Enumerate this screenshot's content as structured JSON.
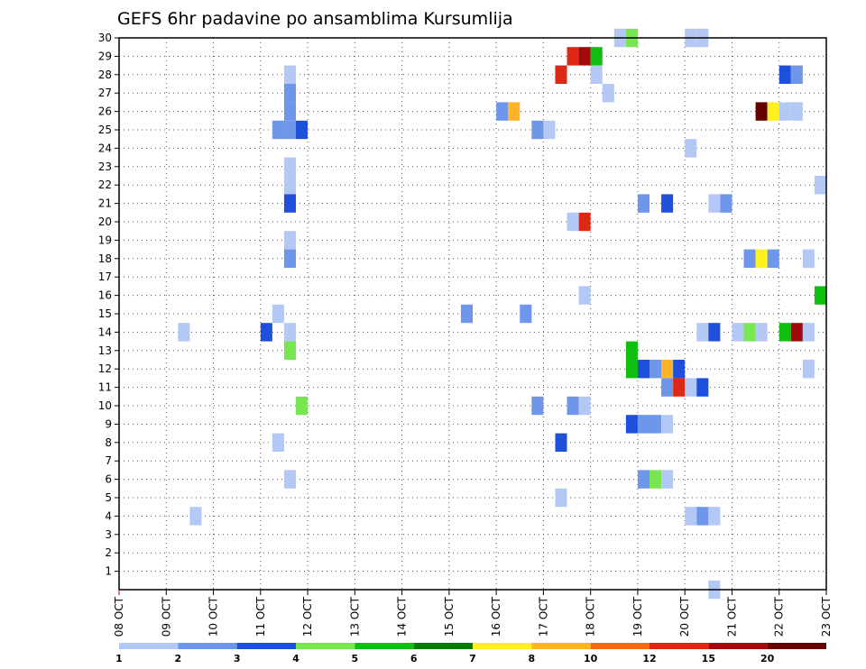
{
  "chart_data": {
    "type": "heatmap",
    "title": "GEFS 6hr padavine po ansamblima Kursumlija",
    "xlabel": "",
    "ylabel": "",
    "x_tick_labels": [
      "08 OCT",
      "09 OCT",
      "10 OCT",
      "11 OCT",
      "12 OCT",
      "13 OCT",
      "14 OCT",
      "15 OCT",
      "16 OCT",
      "17 OCT",
      "18 OCT",
      "19 OCT",
      "20 OCT",
      "21 OCT",
      "22 OCT",
      "23 OCT"
    ],
    "y_tick_labels": [
      "1",
      "2",
      "3",
      "4",
      "5",
      "6",
      "7",
      "8",
      "9",
      "10",
      "11",
      "12",
      "13",
      "14",
      "15",
      "16",
      "17",
      "18",
      "19",
      "20",
      "21",
      "22",
      "23",
      "24",
      "25",
      "26",
      "27",
      "28",
      "29",
      "30"
    ],
    "xlim_days_from_08_oct": [
      0,
      15
    ],
    "ylim_member": [
      0,
      30
    ],
    "grid": true,
    "legend": {
      "position": "bottom",
      "labels": [
        "1",
        "2",
        "3",
        "4",
        "5",
        "6",
        "7",
        "8",
        "10",
        "12",
        "15",
        "20"
      ],
      "colors": [
        "#b4c8f5",
        "#6e96eb",
        "#1e50dc",
        "#78e650",
        "#10be10",
        "#057a05",
        "#fff01e",
        "#ffb428",
        "#f06c0a",
        "#dc2814",
        "#a00a0a",
        "#640000"
      ]
    },
    "cells": [
      {
        "t": 10.5,
        "m": 30,
        "c": 0
      },
      {
        "t": 10.75,
        "m": 30,
        "c": 3
      },
      {
        "t": 12.0,
        "m": 30,
        "c": 0
      },
      {
        "t": 12.25,
        "m": 30,
        "c": 0
      },
      {
        "t": 9.5,
        "m": 29,
        "c": 9
      },
      {
        "t": 9.75,
        "m": 29,
        "c": 10
      },
      {
        "t": 10.0,
        "m": 29,
        "c": 4
      },
      {
        "t": 9.25,
        "m": 28,
        "c": 9
      },
      {
        "t": 10.0,
        "m": 28,
        "c": 0
      },
      {
        "t": 3.5,
        "m": 28,
        "c": 0
      },
      {
        "t": 14.0,
        "m": 28,
        "c": 2
      },
      {
        "t": 14.25,
        "m": 28,
        "c": 1
      },
      {
        "t": 3.5,
        "m": 27,
        "c": 1
      },
      {
        "t": 10.25,
        "m": 27,
        "c": 0
      },
      {
        "t": 3.5,
        "m": 26,
        "c": 1
      },
      {
        "t": 8.0,
        "m": 26,
        "c": 1
      },
      {
        "t": 8.25,
        "m": 26,
        "c": 7
      },
      {
        "t": 13.5,
        "m": 26,
        "c": 11
      },
      {
        "t": 13.75,
        "m": 26,
        "c": 6
      },
      {
        "t": 14.0,
        "m": 26,
        "c": 0
      },
      {
        "t": 14.25,
        "m": 26,
        "c": 0
      },
      {
        "t": 3.25,
        "m": 25,
        "c": 1
      },
      {
        "t": 3.5,
        "m": 25,
        "c": 1
      },
      {
        "t": 3.75,
        "m": 25,
        "c": 2
      },
      {
        "t": 8.75,
        "m": 25,
        "c": 1
      },
      {
        "t": 9.0,
        "m": 25,
        "c": 0
      },
      {
        "t": 12.0,
        "m": 24,
        "c": 0
      },
      {
        "t": 3.5,
        "m": 23,
        "c": 0
      },
      {
        "t": 3.5,
        "m": 22,
        "c": 0
      },
      {
        "t": 14.75,
        "m": 22,
        "c": 0
      },
      {
        "t": 3.5,
        "m": 21,
        "c": 2
      },
      {
        "t": 11.0,
        "m": 21,
        "c": 1
      },
      {
        "t": 11.5,
        "m": 21,
        "c": 2
      },
      {
        "t": 12.5,
        "m": 21,
        "c": 0
      },
      {
        "t": 12.75,
        "m": 21,
        "c": 1
      },
      {
        "t": 9.75,
        "m": 20,
        "c": 9
      },
      {
        "t": 9.5,
        "m": 20,
        "c": 0
      },
      {
        "t": 3.5,
        "m": 19,
        "c": 0
      },
      {
        "t": 3.5,
        "m": 18,
        "c": 1
      },
      {
        "t": 13.25,
        "m": 18,
        "c": 1
      },
      {
        "t": 13.5,
        "m": 18,
        "c": 6
      },
      {
        "t": 13.75,
        "m": 18,
        "c": 1
      },
      {
        "t": 14.5,
        "m": 18,
        "c": 0
      },
      {
        "t": 14.75,
        "m": 16,
        "c": 4
      },
      {
        "t": 9.75,
        "m": 16,
        "c": 0
      },
      {
        "t": 3.25,
        "m": 15,
        "c": 0
      },
      {
        "t": 7.25,
        "m": 15,
        "c": 1
      },
      {
        "t": 8.5,
        "m": 15,
        "c": 1
      },
      {
        "t": 1.25,
        "m": 14,
        "c": 0
      },
      {
        "t": 3.0,
        "m": 14,
        "c": 2
      },
      {
        "t": 3.5,
        "m": 14,
        "c": 0
      },
      {
        "t": 12.25,
        "m": 14,
        "c": 0
      },
      {
        "t": 12.5,
        "m": 14,
        "c": 2
      },
      {
        "t": 13.0,
        "m": 14,
        "c": 0
      },
      {
        "t": 13.25,
        "m": 14,
        "c": 3
      },
      {
        "t": 13.5,
        "m": 14,
        "c": 0
      },
      {
        "t": 14.0,
        "m": 14,
        "c": 4
      },
      {
        "t": 14.25,
        "m": 14,
        "c": 10
      },
      {
        "t": 14.5,
        "m": 14,
        "c": 0
      },
      {
        "t": 3.5,
        "m": 13,
        "c": 3
      },
      {
        "t": 10.75,
        "m": 13,
        "c": 4
      },
      {
        "t": 10.75,
        "m": 12,
        "c": 4
      },
      {
        "t": 11.0,
        "m": 12,
        "c": 2
      },
      {
        "t": 11.25,
        "m": 12,
        "c": 1
      },
      {
        "t": 11.5,
        "m": 12,
        "c": 7
      },
      {
        "t": 11.75,
        "m": 12,
        "c": 2
      },
      {
        "t": 14.5,
        "m": 12,
        "c": 0
      },
      {
        "t": 11.5,
        "m": 11,
        "c": 1
      },
      {
        "t": 11.75,
        "m": 11,
        "c": 9
      },
      {
        "t": 12.0,
        "m": 11,
        "c": 0
      },
      {
        "t": 12.25,
        "m": 11,
        "c": 2
      },
      {
        "t": 3.75,
        "m": 10,
        "c": 3
      },
      {
        "t": 8.75,
        "m": 10,
        "c": 1
      },
      {
        "t": 9.5,
        "m": 10,
        "c": 1
      },
      {
        "t": 9.75,
        "m": 10,
        "c": 0
      },
      {
        "t": 10.75,
        "m": 9,
        "c": 2
      },
      {
        "t": 11.0,
        "m": 9,
        "c": 1
      },
      {
        "t": 11.25,
        "m": 9,
        "c": 1
      },
      {
        "t": 11.5,
        "m": 9,
        "c": 0
      },
      {
        "t": 3.25,
        "m": 8,
        "c": 0
      },
      {
        "t": 9.25,
        "m": 8,
        "c": 2
      },
      {
        "t": 3.5,
        "m": 6,
        "c": 0
      },
      {
        "t": 11.0,
        "m": 6,
        "c": 1
      },
      {
        "t": 11.25,
        "m": 6,
        "c": 3
      },
      {
        "t": 11.5,
        "m": 6,
        "c": 0
      },
      {
        "t": 9.25,
        "m": 5,
        "c": 0
      },
      {
        "t": 1.5,
        "m": 4,
        "c": 0
      },
      {
        "t": 12.0,
        "m": 4,
        "c": 0
      },
      {
        "t": 12.25,
        "m": 4,
        "c": 1
      },
      {
        "t": 12.5,
        "m": 4,
        "c": 0
      },
      {
        "t": 12.5,
        "m": 0,
        "c": 0
      }
    ]
  }
}
